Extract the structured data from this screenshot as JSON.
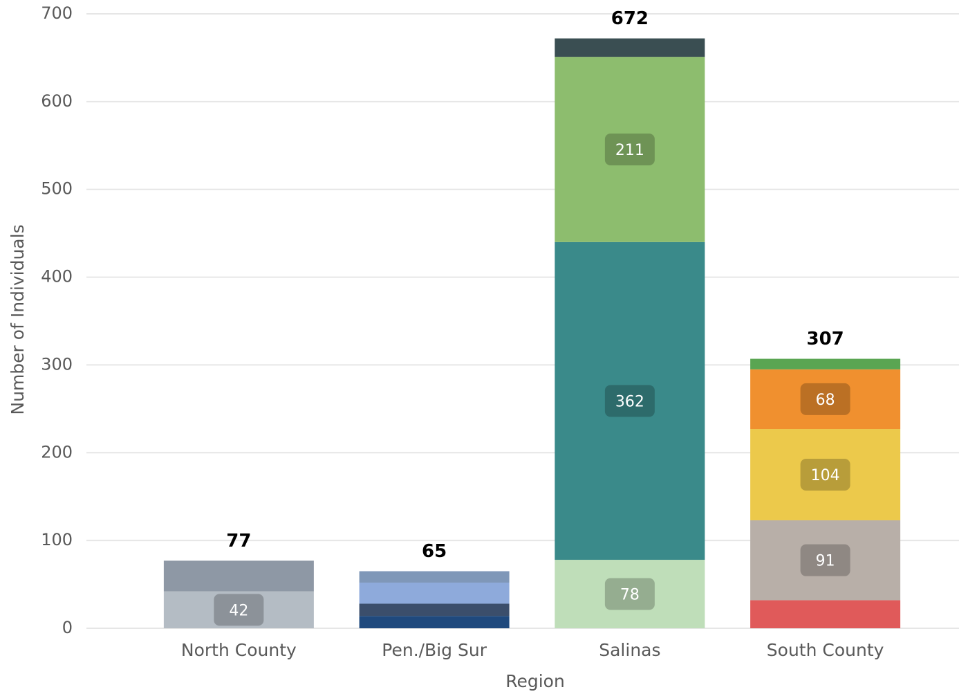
{
  "chart_data": {
    "type": "stacked_bar",
    "x_label": "Region",
    "y_label": "Number of Individuals",
    "categories": [
      "North County",
      "Pen./Big Sur",
      "Salinas",
      "South County"
    ],
    "stacks": [
      {
        "segments": [
          {
            "value": 42,
            "color": "#b4bcc4",
            "show_label": true
          },
          {
            "value": 35,
            "color": "#8e98a5"
          }
        ]
      },
      {
        "segments": [
          {
            "value": 14,
            "color": "#1f497d"
          },
          {
            "value": 14,
            "color": "#3b4e6b"
          },
          {
            "value": 24,
            "color": "#8eaadb"
          },
          {
            "value": 13,
            "color": "#7f97b8"
          }
        ]
      },
      {
        "segments": [
          {
            "value": 78,
            "color": "#bfdeb9",
            "show_label": true
          },
          {
            "value": 362,
            "color": "#3a8a8a",
            "show_label": true
          },
          {
            "value": 211,
            "color": "#8dbd6e",
            "show_label": true
          },
          {
            "value": 21,
            "color": "#3a4e52"
          }
        ]
      },
      {
        "segments": [
          {
            "value": 32,
            "color": "#e05a5a"
          },
          {
            "value": 91,
            "color": "#b8afa8",
            "show_label": true
          },
          {
            "value": 104,
            "color": "#ecc94b",
            "show_label": true
          },
          {
            "value": 68,
            "color": "#f0902f",
            "show_label": true
          },
          {
            "value": 12,
            "color": "#5aa552"
          }
        ]
      }
    ],
    "totals": [
      77,
      65,
      672,
      307
    ],
    "ylim": [
      0,
      700
    ],
    "yticks": [
      0,
      100,
      200,
      300,
      400,
      500,
      600,
      700
    ],
    "grid": true
  }
}
